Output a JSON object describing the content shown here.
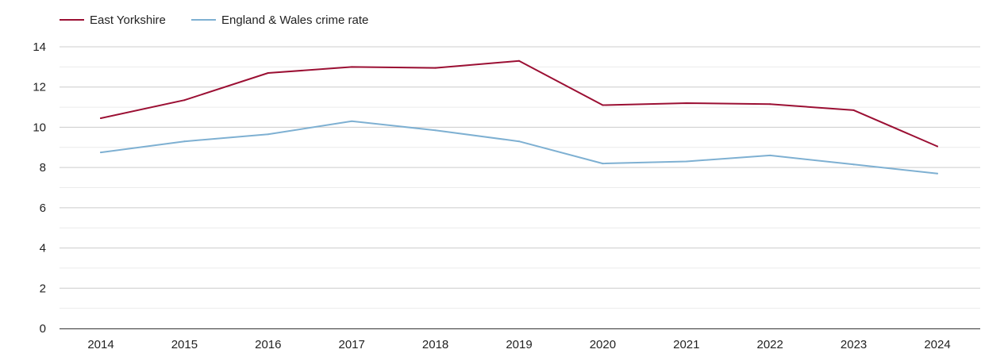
{
  "chart_data": {
    "type": "line",
    "title": "",
    "xlabel": "",
    "ylabel": "",
    "categories": [
      "2014",
      "2015",
      "2016",
      "2017",
      "2018",
      "2019",
      "2020",
      "2021",
      "2022",
      "2023",
      "2024"
    ],
    "series": [
      {
        "name": "East Yorkshire",
        "color": "#9b0f33",
        "values": [
          10.45,
          11.35,
          12.7,
          13.0,
          12.95,
          13.3,
          11.1,
          11.2,
          11.15,
          10.85,
          9.05
        ]
      },
      {
        "name": "England & Wales crime rate",
        "color": "#7eb0d2",
        "values": [
          8.75,
          9.3,
          9.65,
          10.3,
          9.85,
          9.3,
          8.2,
          8.3,
          8.6,
          8.15,
          7.7
        ]
      }
    ],
    "ylim": [
      0,
      14
    ],
    "y_ticks": [
      "0",
      "2",
      "4",
      "6",
      "8",
      "10",
      "12",
      "14"
    ],
    "grid": true,
    "legend_position": "top-left"
  }
}
